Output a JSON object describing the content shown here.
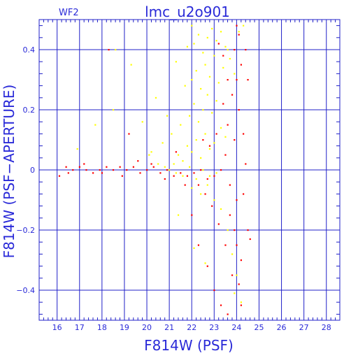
{
  "chart_data": {
    "type": "scatter",
    "title": "lmc_u2o901",
    "panel_label": "WF2",
    "xlabel": "F814W (PSF)",
    "ylabel": "F814W (PSF−APERTURE)",
    "xlim": [
      15.2,
      28.6
    ],
    "ylim": [
      -0.5,
      0.5
    ],
    "x_ticks": [
      16,
      17,
      18,
      19,
      20,
      21,
      22,
      23,
      24,
      25,
      26,
      27,
      28
    ],
    "x_tick_labels": [
      "16",
      "17",
      "18",
      "19",
      "20",
      "21",
      "22",
      "23",
      "24",
      "25",
      "26",
      "27",
      "28"
    ],
    "y_ticks": [
      -0.4,
      -0.2,
      0,
      0.2,
      0.4
    ],
    "y_tick_labels": [
      "−0.4",
      "−0.2",
      "0",
      "0.2",
      "0.4"
    ],
    "grid": true,
    "axis_color": "#2020c8",
    "grid_color": "#2020c8",
    "label_color": "#2a2ad8",
    "series": [
      {
        "color": "#ffff00",
        "points": [
          [
            21.2,
            0.02
          ],
          [
            21.4,
            0.05
          ],
          [
            21.6,
            0.03
          ],
          [
            21.8,
            0.08
          ],
          [
            22.0,
            0.06
          ],
          [
            22.2,
            0.1
          ],
          [
            22.4,
            0.04
          ],
          [
            22.6,
            0.12
          ],
          [
            22.8,
            0.07
          ],
          [
            23.0,
            0.09
          ],
          [
            21.5,
            0.15
          ],
          [
            21.9,
            0.18
          ],
          [
            22.1,
            0.22
          ],
          [
            22.3,
            0.16
          ],
          [
            22.5,
            0.2
          ],
          [
            22.7,
            0.25
          ],
          [
            22.9,
            0.19
          ],
          [
            23.1,
            0.23
          ],
          [
            23.3,
            0.14
          ],
          [
            23.5,
            0.11
          ],
          [
            21.7,
            0.28
          ],
          [
            22.0,
            0.3
          ],
          [
            22.2,
            0.33
          ],
          [
            22.4,
            0.27
          ],
          [
            22.6,
            0.35
          ],
          [
            22.8,
            0.31
          ],
          [
            23.0,
            0.38
          ],
          [
            23.2,
            0.29
          ],
          [
            23.4,
            0.34
          ],
          [
            23.6,
            0.4
          ],
          [
            22.1,
            0.42
          ],
          [
            22.3,
            0.45
          ],
          [
            22.5,
            0.39
          ],
          [
            22.7,
            0.44
          ],
          [
            22.9,
            0.47
          ],
          [
            23.1,
            0.43
          ],
          [
            23.3,
            0.46
          ],
          [
            23.5,
            0.41
          ],
          [
            23.7,
            0.37
          ],
          [
            23.9,
            0.32
          ],
          [
            21.0,
            0.0
          ],
          [
            21.3,
            -0.01
          ],
          [
            21.6,
            -0.02
          ],
          [
            21.9,
            0.01
          ],
          [
            22.2,
            -0.03
          ],
          [
            22.5,
            0.0
          ],
          [
            22.8,
            -0.02
          ],
          [
            23.1,
            -0.01
          ],
          [
            20.8,
            0.01
          ],
          [
            20.5,
            0.02
          ],
          [
            20.2,
            0.06
          ],
          [
            20.7,
            0.09
          ],
          [
            21.1,
            0.12
          ],
          [
            20.9,
            0.18
          ],
          [
            20.4,
            0.24
          ],
          [
            20.1,
            0.05
          ],
          [
            19.8,
            0.16
          ],
          [
            18.5,
            0.2
          ],
          [
            17.7,
            0.15
          ],
          [
            16.9,
            0.07
          ],
          [
            19.3,
            0.35
          ],
          [
            18.6,
            0.4
          ],
          [
            21.3,
            0.36
          ],
          [
            21.8,
            0.41
          ],
          [
            22.0,
            -0.06
          ],
          [
            22.4,
            -0.08
          ],
          [
            22.7,
            -0.05
          ],
          [
            23.0,
            -0.1
          ],
          [
            23.3,
            -0.13
          ],
          [
            23.6,
            -0.2
          ],
          [
            23.8,
            -0.28
          ],
          [
            24.0,
            -0.35
          ],
          [
            24.2,
            -0.44
          ],
          [
            23.9,
            -0.41
          ],
          [
            21.4,
            -0.15
          ],
          [
            22.1,
            -0.26
          ],
          [
            22.6,
            -0.31
          ],
          [
            24.1,
            0.46
          ],
          [
            24.3,
            0.48
          ],
          [
            22.0,
            0.48
          ]
        ]
      },
      {
        "color": "#ff0000",
        "points": [
          [
            16.1,
            -0.02
          ],
          [
            16.4,
            0.01
          ],
          [
            16.7,
            0.0
          ],
          [
            17.0,
            0.01
          ],
          [
            17.3,
            0.0
          ],
          [
            17.6,
            -0.01
          ],
          [
            17.9,
            0.0
          ],
          [
            18.2,
            0.01
          ],
          [
            18.5,
            0.0
          ],
          [
            18.8,
            0.01
          ],
          [
            19.1,
            0.0
          ],
          [
            19.4,
            0.01
          ],
          [
            19.7,
            -0.01
          ],
          [
            20.0,
            0.0
          ],
          [
            20.3,
            0.01
          ],
          [
            20.6,
            -0.01
          ],
          [
            20.9,
            0.0
          ],
          [
            21.2,
            -0.02
          ],
          [
            21.5,
            -0.01
          ],
          [
            21.8,
            -0.02
          ],
          [
            22.1,
            -0.01
          ],
          [
            22.4,
            0.0
          ],
          [
            22.7,
            -0.03
          ],
          [
            23.0,
            -0.02
          ],
          [
            23.3,
            0.0
          ],
          [
            23.5,
            0.05
          ],
          [
            23.7,
            -0.05
          ],
          [
            23.9,
            0.1
          ],
          [
            24.0,
            -0.1
          ],
          [
            24.1,
            0.2
          ],
          [
            23.6,
            0.15
          ],
          [
            23.8,
            0.25
          ],
          [
            24.0,
            0.3
          ],
          [
            24.2,
            0.35
          ],
          [
            23.9,
            0.4
          ],
          [
            24.1,
            0.45
          ],
          [
            23.7,
            -0.15
          ],
          [
            23.9,
            -0.2
          ],
          [
            24.0,
            -0.25
          ],
          [
            24.2,
            -0.3
          ],
          [
            23.8,
            -0.35
          ],
          [
            24.1,
            -0.38
          ],
          [
            23.5,
            -0.25
          ],
          [
            23.2,
            -0.18
          ],
          [
            22.9,
            -0.12
          ],
          [
            22.6,
            -0.08
          ],
          [
            22.3,
            -0.05
          ],
          [
            23.4,
            0.22
          ],
          [
            23.1,
            0.12
          ],
          [
            22.8,
            0.08
          ],
          [
            24.3,
            0.12
          ],
          [
            24.4,
            0.02
          ],
          [
            24.3,
            -0.08
          ],
          [
            24.5,
            -0.2
          ],
          [
            24.6,
            -0.23
          ],
          [
            23.6,
            0.3
          ],
          [
            23.4,
            0.38
          ],
          [
            24.0,
            0.48
          ],
          [
            23.2,
            0.42
          ],
          [
            22.5,
            0.1
          ],
          [
            21.7,
            -0.05
          ],
          [
            21.3,
            0.06
          ],
          [
            20.8,
            -0.03
          ],
          [
            20.2,
            0.02
          ],
          [
            19.6,
            0.03
          ],
          [
            18.9,
            -0.02
          ],
          [
            18.0,
            -0.01
          ],
          [
            17.2,
            0.02
          ],
          [
            16.5,
            -0.01
          ],
          [
            22.0,
            -0.15
          ],
          [
            22.3,
            -0.25
          ],
          [
            22.7,
            -0.32
          ],
          [
            23.0,
            -0.4
          ],
          [
            23.3,
            -0.45
          ],
          [
            23.6,
            -0.48
          ],
          [
            24.2,
            -0.45
          ],
          [
            24.4,
            0.4
          ],
          [
            24.5,
            0.3
          ],
          [
            19.2,
            0.12
          ],
          [
            18.3,
            0.4
          ]
        ]
      }
    ]
  }
}
